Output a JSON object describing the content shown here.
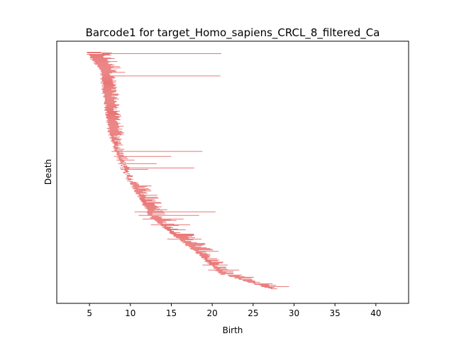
{
  "chart_data": {
    "type": "barcode",
    "title": "Barcode1 for target_Homo_sapiens_CRCL_8_filtered_Ca",
    "xlabel": "Birth",
    "ylabel": "Death",
    "xlim": [
      1,
      44
    ],
    "x_ticks": [
      5,
      10,
      15,
      20,
      25,
      30,
      35,
      40
    ],
    "x_tick_labels": [
      "5",
      "10",
      "15",
      "20",
      "25",
      "30",
      "35",
      "40"
    ],
    "y_ticks_visible": false,
    "grid": false,
    "bar_color": "#e87272",
    "axis_color": "#000000",
    "n_bars": 330,
    "segments": [
      {
        "from_frac": 0.0,
        "to_frac": 0.09,
        "birth_start": 4.6,
        "birth_end": 6.6,
        "len_min": 1.2,
        "len_max": 3.0
      },
      {
        "from_frac": 0.09,
        "to_frac": 0.35,
        "birth_start": 6.4,
        "birth_end": 7.4,
        "len_min": 1.0,
        "len_max": 1.8
      },
      {
        "from_frac": 0.35,
        "to_frac": 0.45,
        "birth_start": 7.5,
        "birth_end": 8.5,
        "len_min": 0.3,
        "len_max": 1.2
      },
      {
        "from_frac": 0.45,
        "to_frac": 0.55,
        "birth_start": 8.6,
        "birth_end": 9.8,
        "len_min": 0.1,
        "len_max": 0.8
      },
      {
        "from_frac": 0.55,
        "to_frac": 0.7,
        "birth_start": 10.0,
        "birth_end": 12.5,
        "len_min": 0.5,
        "len_max": 2.5
      },
      {
        "from_frac": 0.7,
        "to_frac": 0.86,
        "birth_start": 12.5,
        "birth_end": 18.5,
        "len_min": 0.5,
        "len_max": 2.8
      },
      {
        "from_frac": 0.86,
        "to_frac": 0.94,
        "birth_start": 18.5,
        "birth_end": 21.0,
        "len_min": 0.3,
        "len_max": 2.0
      },
      {
        "from_frac": 0.94,
        "to_frac": 1.0,
        "birth_start": 21.5,
        "birth_end": 27.0,
        "len_min": 0.2,
        "len_max": 2.6
      }
    ],
    "long_bars": [
      {
        "rank_frac": 0.005,
        "birth": 6.5,
        "death": 21.1
      },
      {
        "rank_frac": 0.1,
        "birth": 6.6,
        "death": 21.0
      },
      {
        "rank_frac": 0.42,
        "birth": 7.7,
        "death": 18.8
      },
      {
        "rank_frac": 0.44,
        "birth": 8.0,
        "death": 15.0
      },
      {
        "rank_frac": 0.455,
        "birth": 8.3,
        "death": 10.5
      },
      {
        "rank_frac": 0.47,
        "birth": 8.5,
        "death": 13.2
      },
      {
        "rank_frac": 0.49,
        "birth": 8.7,
        "death": 17.8
      },
      {
        "rank_frac": 0.495,
        "birth": 8.8,
        "death": 12.2
      },
      {
        "rank_frac": 0.675,
        "birth": 10.5,
        "death": 20.4
      },
      {
        "rank_frac": 0.69,
        "birth": 11.0,
        "death": 18.4
      },
      {
        "rank_frac": 0.705,
        "birth": 11.5,
        "death": 16.5
      },
      {
        "rank_frac": 0.73,
        "birth": 12.5,
        "death": 17.3
      },
      {
        "rank_frac": 0.79,
        "birth": 14.5,
        "death": 18.7
      },
      {
        "rank_frac": 0.9,
        "birth": 18.8,
        "death": 21.9
      },
      {
        "rank_frac": 0.92,
        "birth": 19.5,
        "death": 23.3
      },
      {
        "rank_frac": 0.992,
        "birth": 26.0,
        "death": 29.4
      }
    ]
  }
}
